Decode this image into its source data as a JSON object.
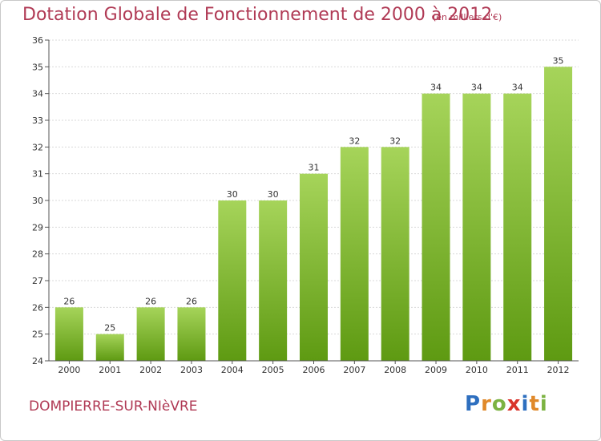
{
  "title": "Dotation Globale de Fonctionnement de 2000 à 2012",
  "subtitle": "(en milliers d'€)",
  "commune": "DOMPIERRE-SUR-NIèVRE",
  "logo": {
    "letters": [
      "P",
      "r",
      "o",
      "x",
      "i",
      "t",
      "i"
    ],
    "colors": [
      "#2e6fbf",
      "#e0892a",
      "#7cb342",
      "#d9342b",
      "#2e6fbf",
      "#e0892a",
      "#7cb342"
    ]
  },
  "colors": {
    "bar_top": "#a6d45a",
    "bar_bottom": "#5e9a12",
    "grid": "#d9d9d9",
    "axis": "#555555"
  },
  "chart_data": {
    "type": "bar",
    "categories": [
      "2000",
      "2001",
      "2002",
      "2003",
      "2004",
      "2005",
      "2006",
      "2007",
      "2008",
      "2009",
      "2010",
      "2011",
      "2012"
    ],
    "values": [
      26,
      25,
      26,
      26,
      30,
      30,
      31,
      32,
      32,
      34,
      34,
      34,
      35
    ],
    "title": "Dotation Globale de Fonctionnement de 2000 à 2012",
    "ylim": [
      24,
      36
    ],
    "yticks": [
      24,
      25,
      26,
      27,
      28,
      29,
      30,
      31,
      32,
      33,
      34,
      35,
      36
    ],
    "grid": true
  }
}
